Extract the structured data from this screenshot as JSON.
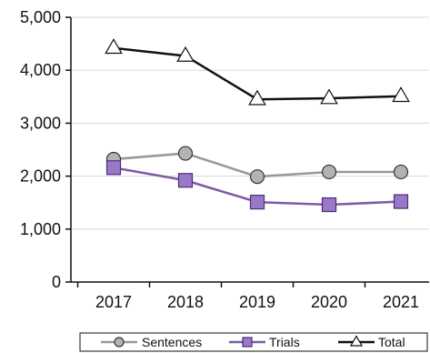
{
  "chart_data": {
    "type": "line",
    "x": [
      "2017",
      "2018",
      "2019",
      "2020",
      "2021"
    ],
    "series": [
      {
        "name": "Sentences",
        "values": [
          2320,
          2430,
          1990,
          2080,
          2080
        ],
        "color": "#999999",
        "marker": "circle",
        "marker_fill": "#b3b3b3"
      },
      {
        "name": "Trials",
        "values": [
          2160,
          1920,
          1510,
          1460,
          1520
        ],
        "color": "#7b5ba8",
        "marker": "square",
        "marker_fill": "#9a78c8"
      },
      {
        "name": "Total",
        "values": [
          4420,
          4270,
          3450,
          3470,
          3510
        ],
        "color": "#111111",
        "marker": "triangle",
        "marker_fill": "#ffffff"
      }
    ],
    "ylim": [
      0,
      5000
    ],
    "y_ticks": [
      0,
      1000,
      2000,
      3000,
      4000,
      5000
    ],
    "y_tick_labels": [
      "0",
      "1,000",
      "2,000",
      "3,000",
      "4,000",
      "5,000"
    ],
    "grid": "horizontal",
    "grid_color": "#d9d9d9",
    "legend_position": "bottom",
    "title": "",
    "xlabel": "",
    "ylabel": ""
  }
}
